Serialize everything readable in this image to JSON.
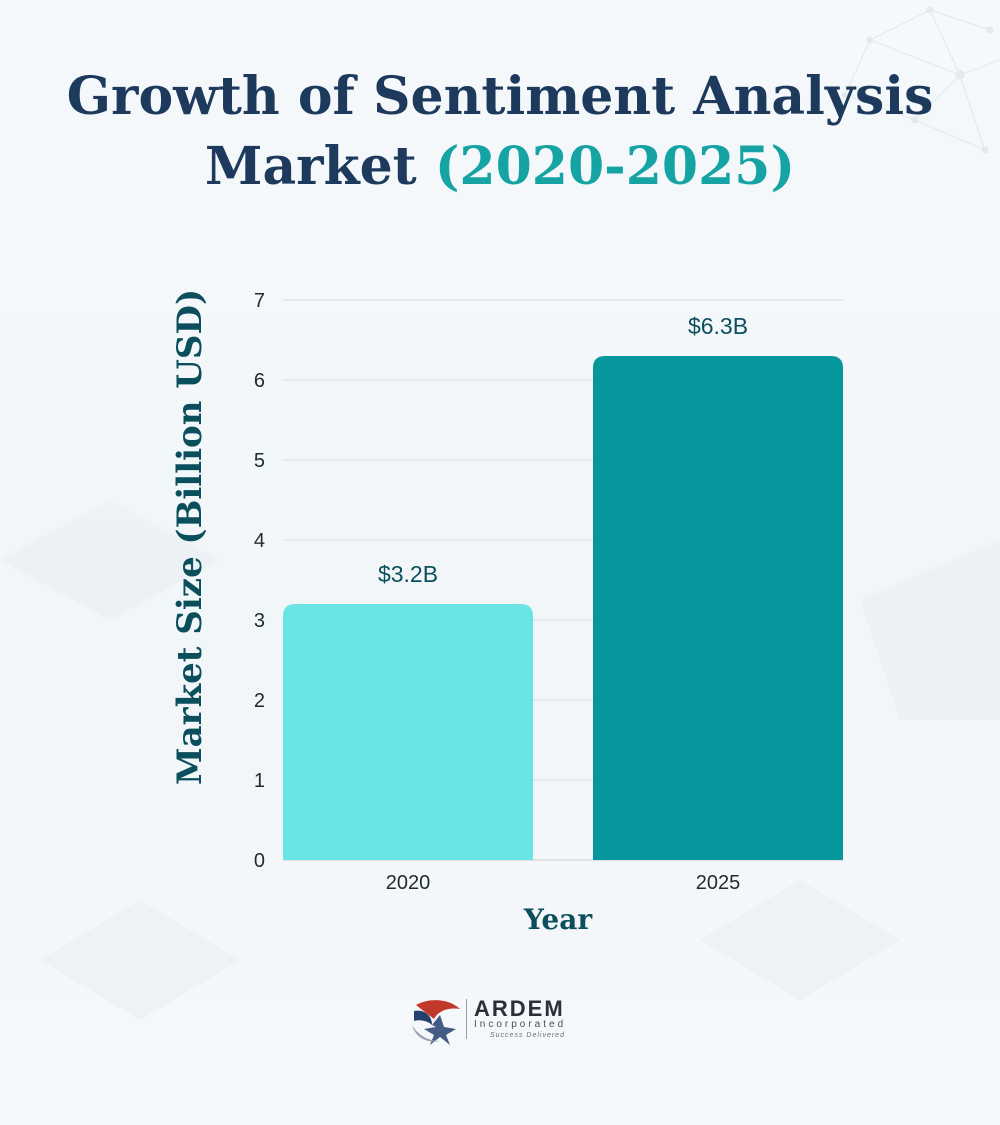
{
  "title_main_1": "Growth of Sentiment Analysis",
  "title_main_2": "Market",
  "title_accent": "(2020-2025)",
  "colors": {
    "title": "#1d3a5c",
    "title_accent": "#15a3a3",
    "axis_title": "#0b4f5c",
    "bar_2020": "#6be4e6",
    "bar_2025": "#05979c",
    "data_label": "#0b4f5c",
    "gridline": "#d6dde2"
  },
  "chart_data": {
    "type": "bar",
    "title": "Growth of Sentiment Analysis Market (2020-2025)",
    "xlabel": "Year",
    "ylabel": "Market Size (Billion USD)",
    "categories": [
      "2020",
      "2025"
    ],
    "values": [
      3.2,
      6.3
    ],
    "data_labels": [
      "$3.2B",
      "$6.3B"
    ],
    "bar_colors": [
      "#6be4e6",
      "#05979c"
    ],
    "ylim": [
      0,
      7
    ],
    "yticks": [
      "0",
      "1",
      "2",
      "3",
      "4",
      "5",
      "6",
      "7"
    ],
    "grid": true,
    "legend": "none"
  },
  "logo": {
    "name": "ARDEM",
    "sub": "Incorporated",
    "tagline": "Success Delivered"
  }
}
